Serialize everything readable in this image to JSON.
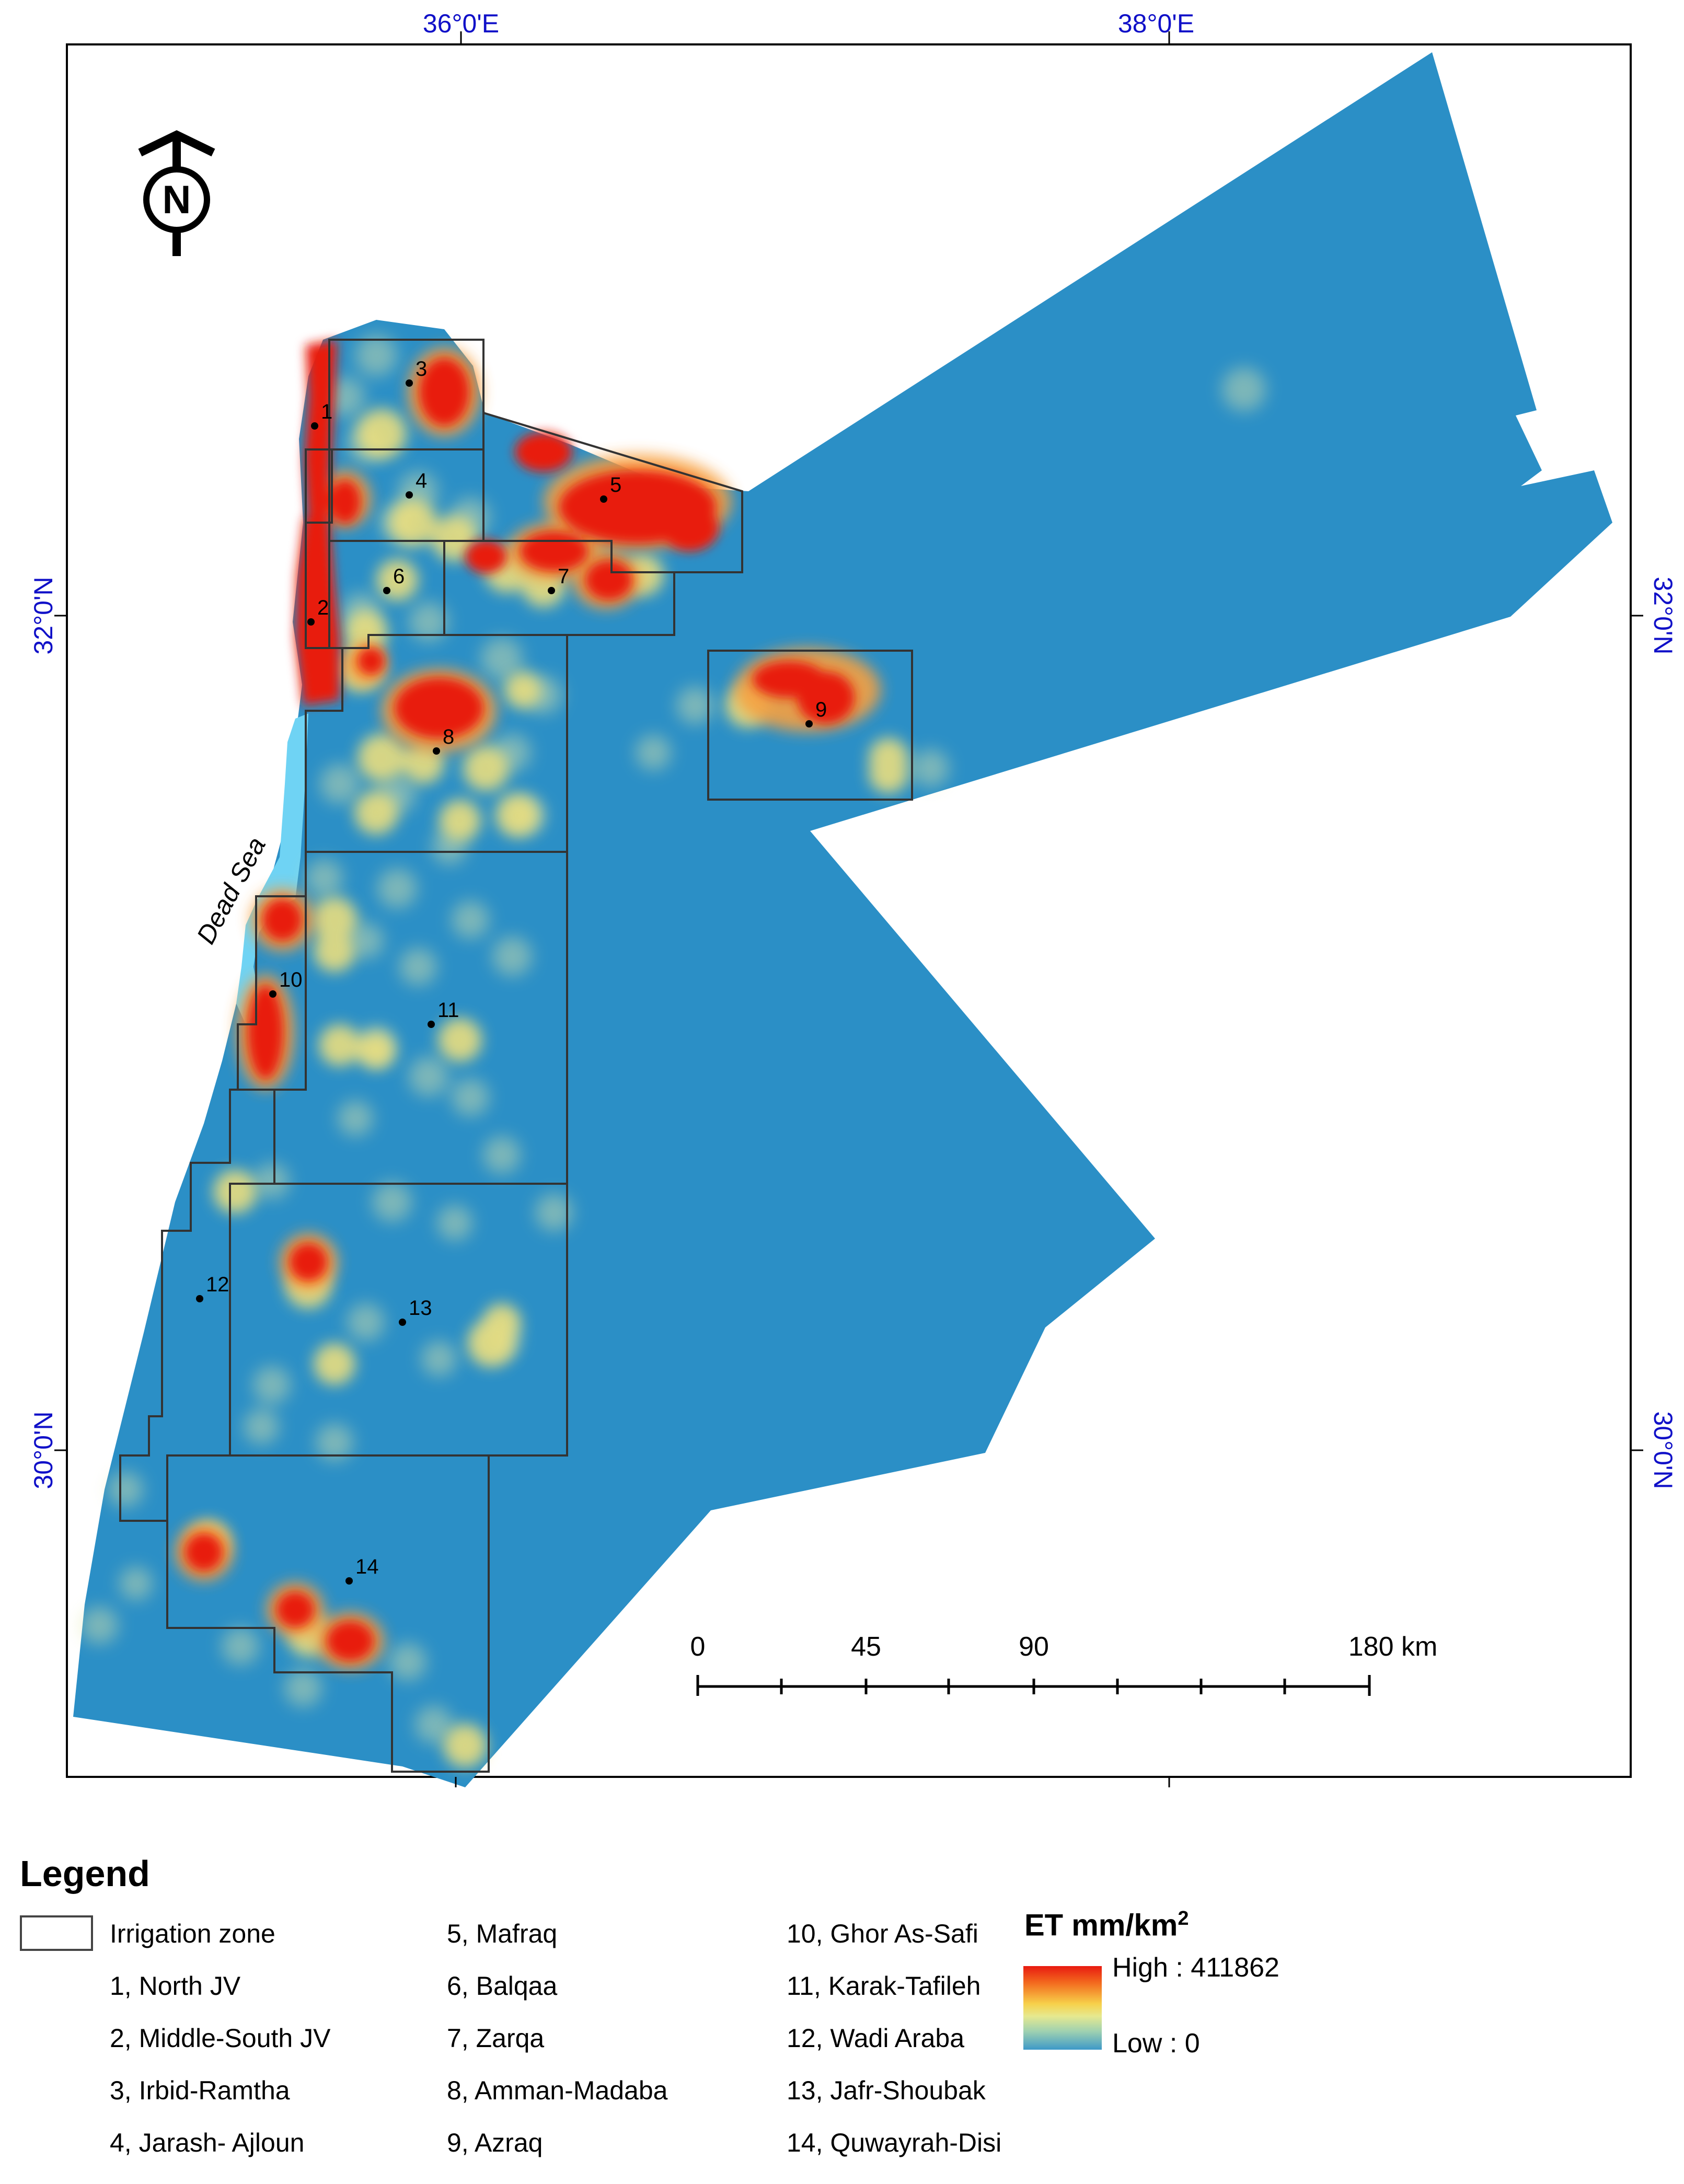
{
  "map": {
    "country_color": "#2b8fc6",
    "dead_sea_color": "#6fd3f4",
    "hot_color": "#e81a10",
    "warm_color": "#f4e27a",
    "grid_labels": {
      "lon_left": "36°0'E",
      "lon_right": "38°0'E",
      "lat_top": "32°0'N",
      "lat_bottom": "30°0'N"
    },
    "north_arrow_letter": "N",
    "dead_sea_label": "Dead Sea",
    "zone_numbers": [
      "1",
      "2",
      "3",
      "4",
      "5",
      "6",
      "7",
      "8",
      "9",
      "10",
      "11",
      "12",
      "13",
      "14"
    ],
    "scale_bar": {
      "labels": [
        "0",
        "45",
        "90",
        "180 km"
      ]
    }
  },
  "legend": {
    "title": "Legend",
    "irrigation_zone_label": "Irrigation zone",
    "zones": [
      "1, North JV",
      "2, Middle-South JV",
      "3, Irbid-Ramtha",
      "4, Jarash- Ajloun",
      "5, Mafraq",
      "6, Balqaa",
      "7, Zarqa",
      "8, Amman-Madaba",
      "9, Azraq",
      "10, Ghor As-Safi",
      "11, Karak-Tafileh",
      "12, Wadi Araba",
      "13, Jafr-Shoubak",
      "14, Quwayrah-Disi"
    ],
    "et": {
      "title_main": "ET mm/km",
      "title_sup": "2",
      "high_label": "High : 411862",
      "low_label": "Low : 0"
    }
  }
}
